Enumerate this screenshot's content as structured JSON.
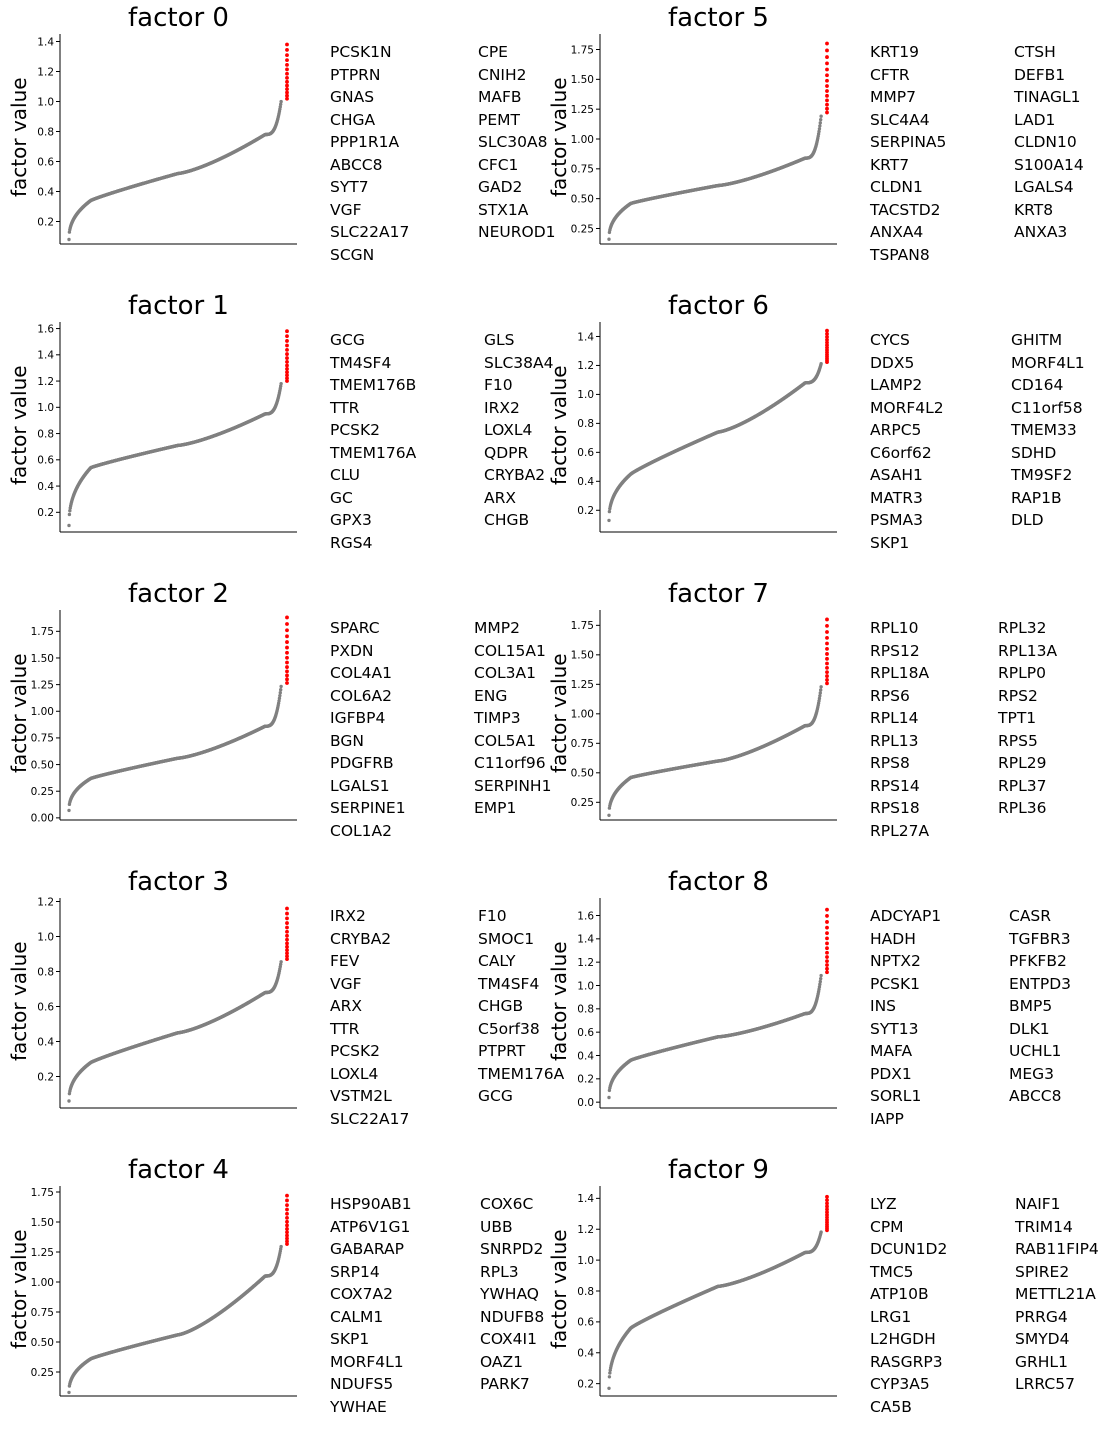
{
  "colors": {
    "curve": "#808080",
    "highlight": "#ff0000",
    "axis": "#000000"
  },
  "chart_data": [
    {
      "type": "scatter",
      "title": "factor 0",
      "ylabel": "factor value",
      "ylim": [
        0.05,
        1.45
      ],
      "yticks": [
        0.2,
        0.4,
        0.6,
        0.8,
        1.0,
        1.2,
        1.4
      ],
      "ytick_labels": [
        "0.2",
        "0.4",
        "0.6",
        "0.8",
        "1.0",
        "1.2",
        "1.4"
      ],
      "sorted_curve": {
        "min": 0.08,
        "q10": 0.34,
        "median": 0.52,
        "q90": 0.78,
        "max": 1.38
      },
      "top_genes": [
        "PCSK1N",
        "PTPRN",
        "GNAS",
        "CHGA",
        "PPP1R1A",
        "ABCC8",
        "SYT7",
        "VGF",
        "SLC22A17",
        "SCGN",
        "CPE",
        "CNIH2",
        "MAFB",
        "PEMT",
        "SLC30A8",
        "CFC1",
        "GAD2",
        "STX1A",
        "NEUROD1"
      ]
    },
    {
      "type": "scatter",
      "title": "factor 1",
      "ylabel": "factor value",
      "ylim": [
        0.05,
        1.65
      ],
      "yticks": [
        0.2,
        0.4,
        0.6,
        0.8,
        1.0,
        1.2,
        1.4,
        1.6
      ],
      "ytick_labels": [
        "0.2",
        "0.4",
        "0.6",
        "0.8",
        "1.0",
        "1.2",
        "1.4",
        "1.6"
      ],
      "sorted_curve": {
        "min": 0.1,
        "q10": 0.54,
        "median": 0.71,
        "q90": 0.95,
        "max": 1.58
      },
      "top_genes": [
        "GCG",
        "TM4SF4",
        "TMEM176B",
        "TTR",
        "PCSK2",
        "TMEM176A",
        "CLU",
        "GC",
        "GPX3",
        "RGS4",
        "GLS",
        "SLC38A4",
        "F10",
        "IRX2",
        "LOXL4",
        "QDPR",
        "CRYBA2",
        "ARX",
        "CHGB"
      ]
    },
    {
      "type": "scatter",
      "title": "factor 2",
      "ylabel": "factor value",
      "ylim": [
        -0.02,
        1.95
      ],
      "yticks": [
        0.0,
        0.25,
        0.5,
        0.75,
        1.0,
        1.25,
        1.5,
        1.75
      ],
      "ytick_labels": [
        "0.00",
        "0.25",
        "0.50",
        "0.75",
        "1.00",
        "1.25",
        "1.50",
        "1.75"
      ],
      "sorted_curve": {
        "min": 0.07,
        "q10": 0.37,
        "median": 0.56,
        "q90": 0.86,
        "max": 1.88
      },
      "top_genes": [
        "SPARC",
        "PXDN",
        "COL4A1",
        "COL6A2",
        "IGFBP4",
        "BGN",
        "PDGFRB",
        "LGALS1",
        "SERPINE1",
        "COL1A2",
        "MMP2",
        "COL15A1",
        "COL3A1",
        "ENG",
        "TIMP3",
        "COL5A1",
        "C11orf96",
        "SERPINH1",
        "EMP1"
      ]
    },
    {
      "type": "scatter",
      "title": "factor 3",
      "ylabel": "factor value",
      "ylim": [
        0.02,
        1.22
      ],
      "yticks": [
        0.2,
        0.4,
        0.6,
        0.8,
        1.0,
        1.2
      ],
      "ytick_labels": [
        "0.2",
        "0.4",
        "0.6",
        "0.8",
        "1.0",
        "1.2"
      ],
      "sorted_curve": {
        "min": 0.06,
        "q10": 0.28,
        "median": 0.45,
        "q90": 0.68,
        "max": 1.16
      },
      "top_genes": [
        "IRX2",
        "CRYBA2",
        "FEV",
        "VGF",
        "ARX",
        "TTR",
        "PCSK2",
        "LOXL4",
        "VSTM2L",
        "SLC22A17",
        "F10",
        "SMOC1",
        "CALY",
        "TM4SF4",
        "CHGB",
        "C5orf38",
        "PTPRT",
        "TMEM176A",
        "GCG"
      ]
    },
    {
      "type": "scatter",
      "title": "factor 4",
      "ylabel": "factor value",
      "ylim": [
        0.05,
        1.8
      ],
      "yticks": [
        0.25,
        0.5,
        0.75,
        1.0,
        1.25,
        1.5,
        1.75
      ],
      "ytick_labels": [
        "0.25",
        "0.50",
        "0.75",
        "1.00",
        "1.25",
        "1.50",
        "1.75"
      ],
      "sorted_curve": {
        "min": 0.08,
        "q10": 0.36,
        "median": 0.56,
        "q90": 1.05,
        "max": 1.72
      },
      "top_genes": [
        "HSP90AB1",
        "ATP6V1G1",
        "GABARAP",
        "SRP14",
        "COX7A2",
        "CALM1",
        "SKP1",
        "MORF4L1",
        "NDUFS5",
        "YWHAE",
        "COX6C",
        "UBB",
        "SNRPD2",
        "RPL3",
        "YWHAQ",
        "NDUFB8",
        "COX4I1",
        "OAZ1",
        "PARK7"
      ]
    },
    {
      "type": "scatter",
      "title": "factor 5",
      "ylabel": "factor value",
      "ylim": [
        0.12,
        1.88
      ],
      "yticks": [
        0.25,
        0.5,
        0.75,
        1.0,
        1.25,
        1.5,
        1.75
      ],
      "ytick_labels": [
        "0.25",
        "0.50",
        "0.75",
        "1.00",
        "1.25",
        "1.50",
        "1.75"
      ],
      "sorted_curve": {
        "min": 0.16,
        "q10": 0.46,
        "median": 0.61,
        "q90": 0.84,
        "max": 1.8
      },
      "top_genes": [
        "KRT19",
        "CFTR",
        "MMP7",
        "SLC4A4",
        "SERPINA5",
        "KRT7",
        "CLDN1",
        "TACSTD2",
        "ANXA4",
        "TSPAN8",
        "CTSH",
        "DEFB1",
        "TINAGL1",
        "LAD1",
        "CLDN10",
        "S100A14",
        "LGALS4",
        "KRT8",
        "ANXA3"
      ]
    },
    {
      "type": "scatter",
      "title": "factor 6",
      "ylabel": "factor value",
      "ylim": [
        0.05,
        1.5
      ],
      "yticks": [
        0.2,
        0.4,
        0.6,
        0.8,
        1.0,
        1.2,
        1.4
      ],
      "ytick_labels": [
        "0.2",
        "0.4",
        "0.6",
        "0.8",
        "1.0",
        "1.2",
        "1.4"
      ],
      "sorted_curve": {
        "min": 0.13,
        "q10": 0.45,
        "median": 0.74,
        "q90": 1.08,
        "max": 1.44
      },
      "top_genes": [
        "CYCS",
        "DDX5",
        "LAMP2",
        "MORF4L2",
        "ARPC5",
        "C6orf62",
        "ASAH1",
        "MATR3",
        "PSMA3",
        "SKP1",
        "GHITM",
        "MORF4L1",
        "CD164",
        "C11orf58",
        "TMEM33",
        "SDHD",
        "TM9SF2",
        "RAP1B",
        "DLD"
      ]
    },
    {
      "type": "scatter",
      "title": "factor 7",
      "ylabel": "factor value",
      "ylim": [
        0.1,
        1.88
      ],
      "yticks": [
        0.25,
        0.5,
        0.75,
        1.0,
        1.25,
        1.5,
        1.75
      ],
      "ytick_labels": [
        "0.25",
        "0.50",
        "0.75",
        "1.00",
        "1.25",
        "1.50",
        "1.75"
      ],
      "sorted_curve": {
        "min": 0.14,
        "q10": 0.46,
        "median": 0.6,
        "q90": 0.9,
        "max": 1.8
      },
      "top_genes": [
        "RPL10",
        "RPS12",
        "RPL18A",
        "RPS6",
        "RPL14",
        "RPL13",
        "RPS8",
        "RPS14",
        "RPS18",
        "RPL27A",
        "RPL32",
        "RPL13A",
        "RPLP0",
        "RPS2",
        "TPT1",
        "RPS5",
        "RPL29",
        "RPL37",
        "RPL36"
      ]
    },
    {
      "type": "scatter",
      "title": "factor 8",
      "ylabel": "factor value",
      "ylim": [
        -0.05,
        1.75
      ],
      "yticks": [
        0.0,
        0.2,
        0.4,
        0.6,
        0.8,
        1.0,
        1.2,
        1.4,
        1.6
      ],
      "ytick_labels": [
        "0.0",
        "0.2",
        "0.4",
        "0.6",
        "0.8",
        "1.0",
        "1.2",
        "1.4",
        "1.6"
      ],
      "sorted_curve": {
        "min": 0.04,
        "q10": 0.36,
        "median": 0.56,
        "q90": 0.76,
        "max": 1.65
      },
      "top_genes": [
        "ADCYAP1",
        "HADH",
        "NPTX2",
        "PCSK1",
        "INS",
        "SYT13",
        "MAFA",
        "PDX1",
        "SORL1",
        "IAPP",
        "CASR",
        "TGFBR3",
        "PFKFB2",
        "ENTPD3",
        "BMP5",
        "DLK1",
        "UCHL1",
        "MEG3",
        "ABCC8"
      ]
    },
    {
      "type": "scatter",
      "title": "factor 9",
      "ylabel": "factor value",
      "ylim": [
        0.12,
        1.48
      ],
      "yticks": [
        0.2,
        0.4,
        0.6,
        0.8,
        1.0,
        1.2,
        1.4
      ],
      "ytick_labels": [
        "0.2",
        "0.4",
        "0.6",
        "0.8",
        "1.0",
        "1.2",
        "1.4"
      ],
      "sorted_curve": {
        "min": 0.17,
        "q10": 0.56,
        "median": 0.83,
        "q90": 1.05,
        "max": 1.41
      },
      "top_genes": [
        "LYZ",
        "CPM",
        "DCUN1D2",
        "TMC5",
        "ATP10B",
        "LRG1",
        "L2HGDH",
        "RASGRP3",
        "CYP3A5",
        "CA5B",
        "NAIF1",
        "TRIM14",
        "RAB11FIP4",
        "SPIRE2",
        "METTL21A",
        "PRRG4",
        "SMYD4",
        "GRHL1",
        "LRRC57"
      ]
    }
  ]
}
